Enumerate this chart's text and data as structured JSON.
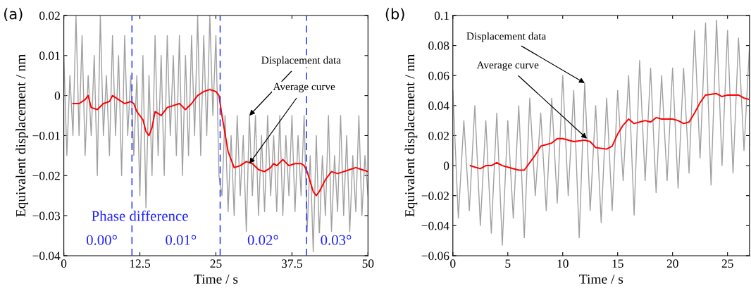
{
  "chart_data": [
    {
      "type": "line",
      "title": "(a)",
      "xlabel": "Time / s",
      "ylabel": "Equivalent displacement / nm",
      "xlim": [
        0,
        50
      ],
      "ylim": [
        -0.04,
        0.02
      ],
      "xticks": [
        0,
        12.5,
        25,
        37.5,
        50
      ],
      "yticks": [
        -0.04,
        -0.03,
        -0.02,
        -0.01,
        0,
        0.01,
        0.02
      ],
      "marker": "none",
      "line_style": "solid",
      "series": [
        {
          "color": "#a0a0a0",
          "x": [
            0,
            0.5,
            1,
            1.5,
            2,
            2.5,
            3,
            3.5,
            4,
            4.5,
            5,
            5.5,
            6,
            6.5,
            7,
            7.5,
            8,
            8.5,
            9,
            9.5,
            10,
            10.5,
            11,
            11.5,
            12,
            12.5,
            13,
            13.5,
            14,
            14.5,
            15,
            15.5,
            16,
            16.5,
            17,
            17.5,
            18,
            18.5,
            19,
            19.5,
            20,
            20.5,
            21,
            21.5,
            22,
            22.5,
            23,
            23.5,
            24,
            24.5,
            25,
            25.5,
            26,
            26.5,
            27,
            27.5,
            28,
            28.5,
            29,
            29.5,
            30,
            30.5,
            31,
            31.5,
            32,
            32.5,
            33,
            33.5,
            34,
            34.5,
            35,
            35.5,
            36,
            36.5,
            37,
            37.5,
            38,
            38.5,
            39,
            39.5,
            40,
            40.5,
            41,
            41.5,
            42,
            42.5,
            43,
            43.5,
            44,
            44.5,
            45,
            45.5,
            46,
            46.5,
            47,
            47.5,
            48,
            48.5,
            49,
            49.5,
            50
          ],
          "values": [
            0.01,
            -0.015,
            0.005,
            -0.01,
            0.02,
            -0.01,
            0.015,
            -0.015,
            0.005,
            -0.01,
            0.01,
            -0.02,
            0.02,
            -0.01,
            0.005,
            -0.015,
            0.015,
            -0.01,
            0.01,
            -0.02,
            0.015,
            -0.01,
            0.005,
            -0.015,
            0.005,
            -0.025,
            0.01,
            -0.028,
            0.005,
            -0.02,
            0.015,
            -0.015,
            0.01,
            -0.02,
            0.015,
            -0.01,
            0.01,
            -0.015,
            0.015,
            -0.02,
            0.01,
            -0.015,
            0.015,
            -0.01,
            0.02,
            -0.015,
            0.015,
            -0.01,
            0.02,
            -0.005,
            0.015,
            -0.02,
            -0.025,
            -0.005,
            -0.029,
            -0.01,
            -0.03,
            -0.005,
            -0.025,
            -0.01,
            -0.034,
            -0.005,
            -0.025,
            -0.005,
            -0.03,
            -0.01,
            -0.029,
            -0.005,
            -0.025,
            -0.01,
            -0.029,
            -0.005,
            -0.03,
            -0.01,
            -0.025,
            -0.005,
            -0.029,
            -0.01,
            -0.025,
            -0.005,
            -0.034,
            -0.015,
            -0.039,
            -0.01,
            -0.035,
            -0.015,
            -0.03,
            -0.005,
            -0.034,
            -0.015,
            -0.029,
            -0.005,
            -0.03,
            -0.01,
            -0.034,
            -0.015,
            -0.029,
            -0.005,
            -0.03,
            -0.015,
            -0.025
          ]
        },
        {
          "color": "#ff0000",
          "x": [
            1.5,
            2.5,
            3.5,
            4,
            4.5,
            5.5,
            6.5,
            7.5,
            8,
            9,
            10,
            11,
            11.5,
            12,
            13,
            13.5,
            14,
            14.5,
            15,
            16,
            17,
            18,
            19,
            20,
            21,
            22,
            23,
            24,
            25,
            25.5,
            26,
            27,
            28,
            29,
            30,
            31,
            32,
            33,
            34,
            34.5,
            35,
            36,
            37,
            38,
            39,
            39.5,
            40,
            41,
            41.5,
            42,
            43,
            44,
            45,
            46,
            47,
            48,
            49,
            50
          ],
          "values": [
            -0.002,
            -0.002,
            -0.001,
            0,
            -0.003,
            -0.0035,
            -0.002,
            -0.0015,
            0,
            -0.001,
            -0.002,
            -0.0015,
            -0.002,
            -0.004,
            -0.006,
            -0.009,
            -0.01,
            -0.008,
            -0.004,
            -0.005,
            -0.003,
            -0.0025,
            -0.002,
            -0.0035,
            -0.002,
            0,
            0.001,
            0.0015,
            0.001,
            0,
            -0.005,
            -0.014,
            -0.018,
            -0.0175,
            -0.0165,
            -0.017,
            -0.0185,
            -0.019,
            -0.018,
            -0.017,
            -0.0175,
            -0.016,
            -0.0175,
            -0.017,
            -0.017,
            -0.0175,
            -0.019,
            -0.024,
            -0.025,
            -0.024,
            -0.021,
            -0.019,
            -0.0195,
            -0.019,
            -0.0185,
            -0.018,
            -0.0185,
            -0.019
          ]
        }
      ],
      "ref_lines": [
        {
          "axis": "x",
          "value": 11.2,
          "color": "#3344ff",
          "line_style": "dashed"
        },
        {
          "axis": "x",
          "value": 25.7,
          "color": "#3344ff",
          "line_style": "dashed"
        },
        {
          "axis": "x",
          "value": 39.9,
          "color": "#3344ff",
          "line_style": "dashed"
        }
      ],
      "annotations": [
        {
          "text": "Displacement data",
          "x": 30.5,
          "y": -0.005
        },
        {
          "text": "Average curve",
          "x": 30.5,
          "y": -0.017
        },
        "Phase difference",
        "0.00°",
        "0.01°",
        "0.02°",
        "0.03°"
      ]
    },
    {
      "type": "line",
      "title": "(b)",
      "xlabel": "Time / s",
      "ylabel": "Equivalent displacement / nm",
      "xlim": [
        0,
        27
      ],
      "ylim": [
        -0.06,
        0.1
      ],
      "xticks": [
        0,
        5,
        10,
        15,
        20,
        25
      ],
      "yticks": [
        -0.06,
        -0.04,
        -0.02,
        0,
        0.02,
        0.04,
        0.06,
        0.08,
        0.1
      ],
      "marker": "none",
      "line_style": "solid",
      "series": [
        {
          "color": "#a0a0a0",
          "x": [
            0,
            0.5,
            1,
            1.5,
            2,
            2.5,
            3,
            3.5,
            4,
            4.5,
            5,
            5.5,
            6,
            6.5,
            7,
            7.5,
            8,
            8.5,
            9,
            9.5,
            10,
            10.5,
            11,
            11.5,
            12,
            12.5,
            13,
            13.5,
            14,
            14.5,
            15,
            15.5,
            16,
            16.5,
            17,
            17.5,
            18,
            18.5,
            19,
            19.5,
            20,
            20.5,
            21,
            21.5,
            22,
            22.5,
            23,
            23.5,
            24,
            24.5,
            25,
            25.5,
            26,
            26.5,
            27
          ],
          "values": [
            0.05,
            -0.035,
            0.03,
            -0.03,
            0.04,
            -0.04,
            0.03,
            -0.045,
            0.035,
            -0.053,
            0.03,
            -0.035,
            0.04,
            -0.048,
            0.045,
            -0.02,
            0.035,
            -0.03,
            0.045,
            -0.025,
            0.06,
            -0.02,
            0.05,
            -0.048,
            0.055,
            -0.03,
            0.04,
            -0.038,
            0.045,
            -0.03,
            0.05,
            -0.01,
            0.06,
            -0.033,
            0.07,
            -0.01,
            0.065,
            -0.018,
            0.06,
            -0.01,
            0.065,
            -0.015,
            0.065,
            -0.005,
            0.09,
            0.005,
            0.095,
            -0.013,
            0.097,
            0.0,
            0.09,
            -0.005,
            0.085,
            0.01,
            0.08
          ]
        },
        {
          "color": "#ff0000",
          "x": [
            1.6,
            2,
            2.5,
            3,
            3.5,
            4,
            4.5,
            5,
            6,
            6.5,
            7,
            7.5,
            8,
            8.5,
            9,
            9.5,
            10,
            11,
            12,
            12.5,
            13,
            14,
            14.5,
            15,
            15.5,
            16,
            16.5,
            17,
            17.5,
            18,
            18.5,
            19,
            20,
            20.5,
            21,
            21.5,
            22,
            22.5,
            23,
            24,
            24.5,
            25,
            26,
            26.5,
            27
          ],
          "values": [
            0,
            -0.001,
            -0.002,
            0,
            0,
            0.002,
            0,
            -0.001,
            -0.003,
            -0.003,
            0.002,
            0.007,
            0.013,
            0.014,
            0.015,
            0.018,
            0.018,
            0.016,
            0.017,
            0.016,
            0.012,
            0.011,
            0.013,
            0.021,
            0.027,
            0.031,
            0.028,
            0.029,
            0.03,
            0.029,
            0.032,
            0.031,
            0.031,
            0.03,
            0.028,
            0.029,
            0.035,
            0.042,
            0.047,
            0.048,
            0.046,
            0.047,
            0.047,
            0.045,
            0.044
          ]
        }
      ],
      "annotations": [
        {
          "text": "Displacement data",
          "x": 12,
          "y": 0.055
        },
        {
          "text": "Average curve",
          "x": 12.2,
          "y": 0.018
        }
      ]
    }
  ]
}
